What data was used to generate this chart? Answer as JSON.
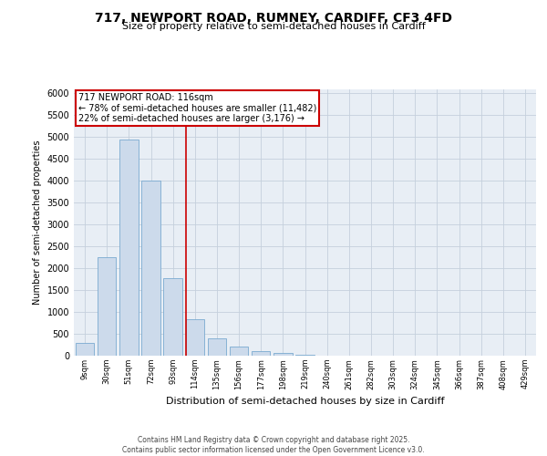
{
  "title_line1": "717, NEWPORT ROAD, RUMNEY, CARDIFF, CF3 4FD",
  "title_line2": "Size of property relative to semi-detached houses in Cardiff",
  "xlabel": "Distribution of semi-detached houses by size in Cardiff",
  "ylabel": "Number of semi-detached properties",
  "footer_line1": "Contains HM Land Registry data © Crown copyright and database right 2025.",
  "footer_line2": "Contains public sector information licensed under the Open Government Licence v3.0.",
  "categories": [
    "9sqm",
    "30sqm",
    "51sqm",
    "72sqm",
    "93sqm",
    "114sqm",
    "135sqm",
    "156sqm",
    "177sqm",
    "198sqm",
    "219sqm",
    "240sqm",
    "261sqm",
    "282sqm",
    "303sqm",
    "324sqm",
    "345sqm",
    "366sqm",
    "387sqm",
    "408sqm",
    "429sqm"
  ],
  "values": [
    290,
    2250,
    4950,
    4000,
    1780,
    840,
    390,
    210,
    100,
    60,
    15,
    8,
    0,
    0,
    0,
    0,
    0,
    0,
    0,
    0,
    0
  ],
  "bar_color": "#ccdaeb",
  "bar_edge_color": "#7aaad0",
  "property_line_index": 5,
  "property_line_color": "#cc0000",
  "annotation_title": "717 NEWPORT ROAD: 116sqm",
  "annotation_line1": "← 78% of semi-detached houses are smaller (11,482)",
  "annotation_line2": "22% of semi-detached houses are larger (3,176) →",
  "annotation_box_color": "#cc0000",
  "ylim": [
    0,
    6100
  ],
  "yticks": [
    0,
    500,
    1000,
    1500,
    2000,
    2500,
    3000,
    3500,
    4000,
    4500,
    5000,
    5500,
    6000
  ],
  "grid_color": "#c5d0dc",
  "bg_color": "#e8eef5",
  "title_fontsize": 10,
  "subtitle_fontsize": 8,
  "ylabel_fontsize": 7,
  "xlabel_fontsize": 8,
  "ytick_fontsize": 7,
  "xtick_fontsize": 6,
  "annotation_fontsize": 7,
  "footer_fontsize": 5.5
}
